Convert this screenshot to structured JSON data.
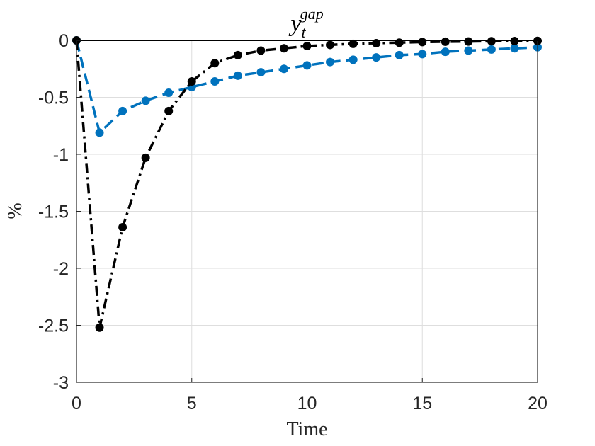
{
  "chart_data": {
    "type": "line",
    "title": "y",
    "title_subscript": "t",
    "title_superscript": "gap",
    "xlabel": "Time",
    "ylabel": "%",
    "xlim": [
      0,
      20
    ],
    "ylim": [
      -3,
      0
    ],
    "x_ticks": [
      0,
      5,
      10,
      15,
      20
    ],
    "x_tick_labels": [
      "0",
      "5",
      "10",
      "15",
      "20"
    ],
    "y_ticks": [
      0,
      -0.5,
      -1,
      -1.5,
      -2,
      -2.5,
      -3
    ],
    "y_tick_labels": [
      "0",
      "-0.5",
      "-1",
      "-1.5",
      "-2",
      "-2.5",
      "-3"
    ],
    "grid": true,
    "x": [
      0,
      1,
      2,
      3,
      4,
      5,
      6,
      7,
      8,
      9,
      10,
      11,
      12,
      13,
      14,
      15,
      16,
      17,
      18,
      19,
      20
    ],
    "series": [
      {
        "name": "blue dashed",
        "color": "#0072BD",
        "style": "dashed",
        "values": [
          0,
          -0.81,
          -0.62,
          -0.53,
          -0.46,
          -0.41,
          -0.36,
          -0.31,
          -0.28,
          -0.25,
          -0.22,
          -0.19,
          -0.17,
          -0.15,
          -0.13,
          -0.12,
          -0.1,
          -0.09,
          -0.08,
          -0.07,
          -0.06
        ]
      },
      {
        "name": "black dash-dot",
        "color": "#000000",
        "style": "dashdot",
        "values": [
          0,
          -2.52,
          -1.64,
          -1.03,
          -0.62,
          -0.36,
          -0.2,
          -0.13,
          -0.09,
          -0.07,
          -0.05,
          -0.04,
          -0.03,
          -0.025,
          -0.02,
          -0.015,
          -0.012,
          -0.01,
          -0.008,
          -0.006,
          -0.005
        ]
      }
    ]
  }
}
